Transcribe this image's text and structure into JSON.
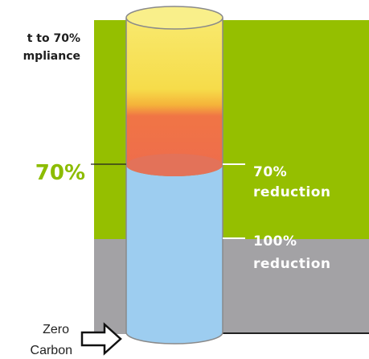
{
  "header": {
    "lines": [
      "t to 70%",
      "mpliance"
    ]
  },
  "marker": {
    "label": "70%"
  },
  "levels": [
    {
      "value": "70%",
      "text": "reduction"
    },
    {
      "value": "100%",
      "text": "reduction"
    }
  ],
  "base": {
    "lines": [
      "Zero",
      "Carbon"
    ]
  }
}
